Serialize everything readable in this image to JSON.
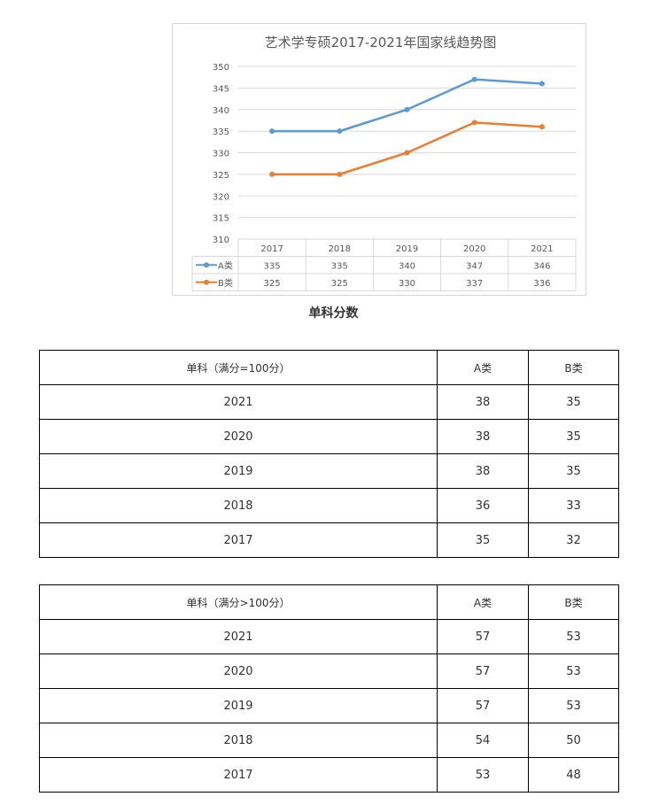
{
  "chart_data": {
    "type": "line",
    "title": "艺术学专硕2017-2021年国家线趋势图",
    "categories": [
      "2017",
      "2018",
      "2019",
      "2020",
      "2021"
    ],
    "series": [
      {
        "name": "A类",
        "values": [
          335,
          335,
          340,
          347,
          346
        ],
        "color": "#5b9bd5"
      },
      {
        "name": "B类",
        "values": [
          325,
          325,
          330,
          337,
          336
        ],
        "color": "#ed7d31"
      }
    ],
    "ylim": [
      310,
      350
    ],
    "yticks": [
      310,
      315,
      320,
      325,
      330,
      335,
      340,
      345,
      350
    ],
    "grid": true,
    "legend": "data-table"
  },
  "caption": "单科分数",
  "table1": {
    "headers": [
      "单科（满分=100分）",
      "A类",
      "B类"
    ],
    "rows": [
      [
        "2021",
        "38",
        "35"
      ],
      [
        "2020",
        "38",
        "35"
      ],
      [
        "2019",
        "38",
        "35"
      ],
      [
        "2018",
        "36",
        "33"
      ],
      [
        "2017",
        "35",
        "32"
      ]
    ]
  },
  "table2": {
    "headers": [
      "单科（满分>100分）",
      "A类",
      "B类"
    ],
    "rows": [
      [
        "2021",
        "57",
        "53"
      ],
      [
        "2020",
        "57",
        "53"
      ],
      [
        "2019",
        "57",
        "53"
      ],
      [
        "2018",
        "54",
        "50"
      ],
      [
        "2017",
        "53",
        "48"
      ]
    ]
  }
}
